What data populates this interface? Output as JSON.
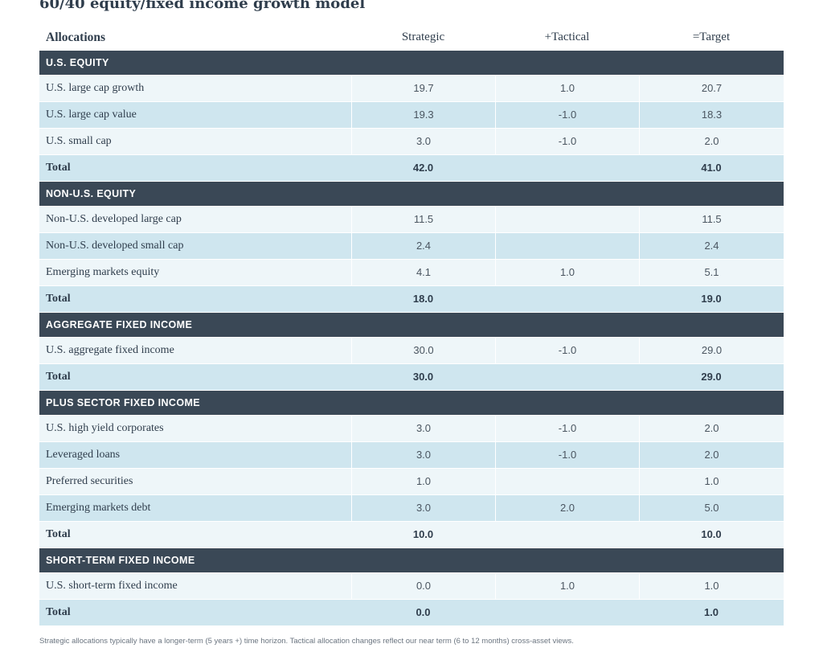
{
  "title": "60/40 equity/fixed income growth model",
  "columns": {
    "allocations": "Allocations",
    "strategic": "Strategic",
    "tactical": "+Tactical",
    "target": "=Target"
  },
  "sections": [
    {
      "name": "U.S. EQUITY",
      "rows": [
        {
          "label": "U.S. large cap growth",
          "strategic": "19.7",
          "tactical": "1.0",
          "target": "20.7"
        },
        {
          "label": "U.S. large cap value",
          "strategic": "19.3",
          "tactical": "-1.0",
          "target": "18.3"
        },
        {
          "label": "U.S. small cap",
          "strategic": "3.0",
          "tactical": "-1.0",
          "target": "2.0"
        }
      ],
      "total": {
        "label": "Total",
        "strategic": "42.0",
        "target": "41.0"
      }
    },
    {
      "name": "NON-U.S. EQUITY",
      "rows": [
        {
          "label": "Non-U.S. developed large cap",
          "strategic": "11.5",
          "tactical": "",
          "target": "11.5"
        },
        {
          "label": "Non-U.S. developed small cap",
          "strategic": "2.4",
          "tactical": "",
          "target": "2.4"
        },
        {
          "label": "Emerging markets equity",
          "strategic": "4.1",
          "tactical": "1.0",
          "target": "5.1"
        }
      ],
      "total": {
        "label": "Total",
        "strategic": "18.0",
        "target": "19.0"
      }
    },
    {
      "name": "AGGREGATE FIXED INCOME",
      "rows": [
        {
          "label": "U.S. aggregate fixed income",
          "strategic": "30.0",
          "tactical": "-1.0",
          "target": "29.0"
        }
      ],
      "total": {
        "label": "Total",
        "strategic": "30.0",
        "target": "29.0"
      }
    },
    {
      "name": "PLUS SECTOR FIXED INCOME",
      "rows": [
        {
          "label": "U.S. high yield corporates",
          "strategic": "3.0",
          "tactical": "-1.0",
          "target": "2.0"
        },
        {
          "label": "Leveraged loans",
          "strategic": "3.0",
          "tactical": "-1.0",
          "target": "2.0"
        },
        {
          "label": "Preferred securities",
          "strategic": "1.0",
          "tactical": "",
          "target": "1.0"
        },
        {
          "label": "Emerging markets debt",
          "strategic": "3.0",
          "tactical": "2.0",
          "target": "5.0"
        }
      ],
      "total": {
        "label": "Total",
        "strategic": "10.0",
        "target": "10.0"
      }
    },
    {
      "name": "SHORT-TERM FIXED INCOME",
      "rows": [
        {
          "label": "U.S. short-term fixed income",
          "strategic": "0.0",
          "tactical": "1.0",
          "target": "1.0"
        }
      ],
      "total": {
        "label": "Total",
        "strategic": "0.0",
        "target": "1.0"
      }
    }
  ],
  "footnote": "Strategic allocations typically have a longer-term (5 years +) time horizon. Tactical allocation changes reflect our near term (6 to 12 months) cross-asset views.",
  "colors": {
    "section_bg": "#3a4856",
    "row_light": "#eef6f9",
    "row_medium": "#cfe6ef",
    "text": "#2f3d4c"
  }
}
